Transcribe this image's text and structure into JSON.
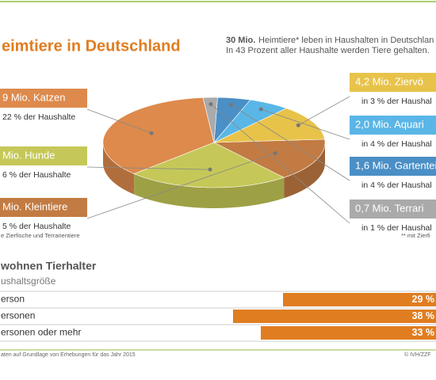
{
  "header": {
    "title": "eimtiere in Deutschland",
    "intro_bold": "30 Mio.",
    "intro_line1": "Heimtiere* leben in Haushalten in Deutschlan",
    "intro_line2": "In 43 Prozent aller Haushalte werden Tiere gehalten."
  },
  "chart_data": [
    {
      "type": "pie",
      "categories": [
        "9 Mio. Katzen",
        "Mio. Hunde",
        "Mio. Kleintiere",
        "4,2 Mio. Ziervö",
        "2,0 Mio. Aquari",
        "1,6 Mio. Gartenteiche",
        "0,7 Mio. Terrari"
      ],
      "sublabels": [
        "22 % der Haushalte",
        "6 % der Haushalte",
        "5 % der Haushalte",
        "in 3 % der Haushal",
        "in 4 % der Haushal",
        "in 4 % der Haushal",
        "in 1 % der Haushal"
      ],
      "values": [
        11.9,
        7.9,
        5.1,
        4.2,
        2.0,
        1.6,
        0.7
      ],
      "colors": [
        "#dd8a4c",
        "#c5c858",
        "#c27b42",
        "#e8c34a",
        "#5ab6e6",
        "#4a8fc6",
        "#aaaaaa"
      ],
      "note_left": "e Zierfische und Terrarientiere",
      "note_right": "** mit Zierfi"
    },
    {
      "type": "bar",
      "title": "wohnen Tierhalter",
      "subtitle": "ushaltsgröße",
      "categories": [
        "erson",
        "ersonen",
        "ersonen oder mehr"
      ],
      "values": [
        29,
        38,
        33
      ],
      "value_labels": [
        "29 %",
        "38 %",
        "33 %"
      ],
      "color": "#e07d20"
    }
  ],
  "footer": {
    "source": "aten auf Grundlage von Erhebungen für das Jahr 2015",
    "credit": "© IVH/ZZF"
  }
}
